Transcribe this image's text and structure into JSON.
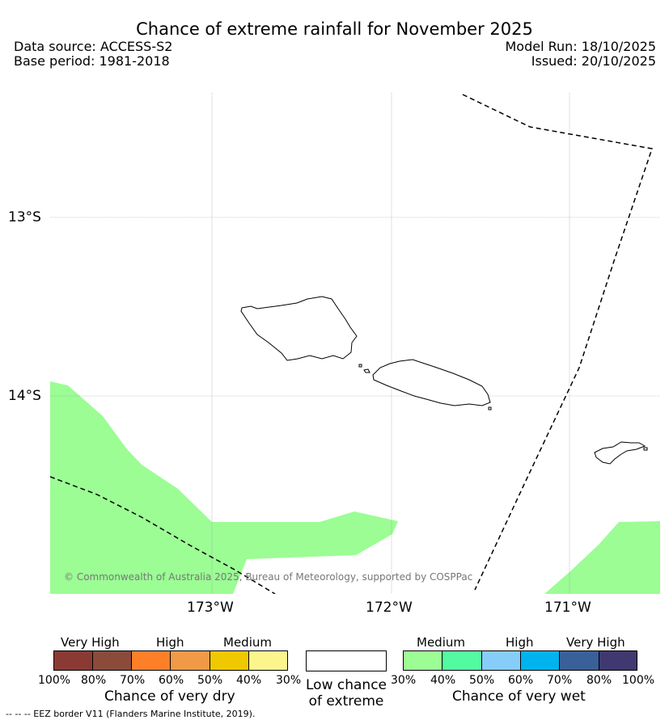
{
  "title": "Chance of extreme rainfall for November 2025",
  "header": {
    "data_source": "Data source: ACCESS-S2",
    "base_period": "Base period: 1981-2018",
    "model_run": "Model Run: 18/10/2025",
    "issued": "Issued: 20/10/2025"
  },
  "map": {
    "lat_labels": [
      "13°S",
      "14°S"
    ],
    "lon_labels": [
      "173°W",
      "172°W",
      "171°W"
    ],
    "copyright": "© Commonwealth of Australia 2025, Bureau of Meteorology, supported by COSPPac",
    "colors": {
      "land_outline": "#000000",
      "wet_medium_30_40": "#9bfd94",
      "eez_border": "#000000"
    },
    "shaded_category": "Medium (30%-40%) chance of very wet"
  },
  "legend": {
    "dry": {
      "headers": [
        "Very High",
        "High",
        "Medium"
      ],
      "ticks": [
        "100%",
        "80%",
        "70%",
        "60%",
        "50%",
        "40%",
        "30%"
      ],
      "colors": [
        "#8b3a33",
        "#8b4b3b",
        "#fe7f28",
        "#f09a47",
        "#f0c800",
        "#fcf58d"
      ],
      "title": "Chance of very dry"
    },
    "low": {
      "label": "Low chance of extreme",
      "color": "#ffffff"
    },
    "wet": {
      "headers": [
        "Medium",
        "High",
        "Very High"
      ],
      "ticks": [
        "30%",
        "40%",
        "50%",
        "60%",
        "70%",
        "80%",
        "100%"
      ],
      "colors": [
        "#9bfd94",
        "#52fba0",
        "#87cdfa",
        "#00b3ef",
        "#3a6099",
        "#403870"
      ],
      "title": "Chance of very wet"
    },
    "eez_note": "--  --  -- EEZ border V11 (Flanders Marine Institute, 2019)."
  }
}
